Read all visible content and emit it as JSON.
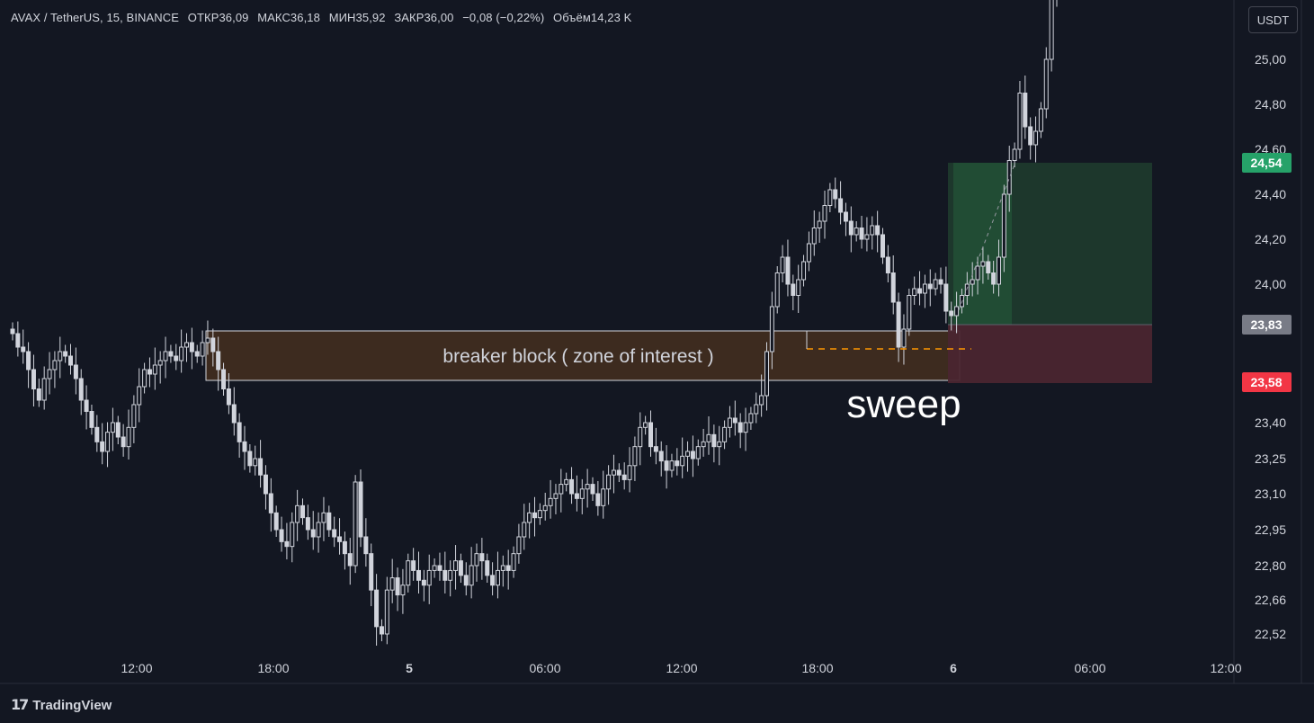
{
  "header": {
    "symbol": "AVAX / TetherUS, 15, BINANCE",
    "open": "ОТКР36,09",
    "high": "МАКС36,18",
    "low": "МИН35,92",
    "close": "ЗАКР36,00",
    "change": "−0,08 (−0,22%)",
    "volume": "Объём14,23 K"
  },
  "currency_button": "USDT",
  "brand": "TradingView",
  "colors": {
    "background": "#131722",
    "candle": "#d1d4dc",
    "target_zone": "#1f3b2e",
    "stop_zone": "#4a2530",
    "breaker_zone": "#3d2b1f",
    "target_badge": "#26a269",
    "stop_badge": "#f23645",
    "entry_badge": "#787b86",
    "dashed_line": "#ff9800"
  },
  "chart_data": {
    "type": "candlestick",
    "price_axis": {
      "ticks": [
        "25,00",
        "24,80",
        "24,60",
        "24,40",
        "24,20",
        "24,00",
        "23,40",
        "23,25",
        "23,10",
        "22,95",
        "22,80",
        "22,66",
        "22,52"
      ],
      "price_labels": {
        "target": "24,54",
        "entry": "23,83",
        "stop": "23,58"
      }
    },
    "time_axis": {
      "ticks": [
        "12:00",
        "18:00",
        "5",
        "06:00",
        "12:00",
        "18:00",
        "6",
        "06:00",
        "12:00"
      ],
      "bold": [
        false,
        false,
        true,
        false,
        false,
        false,
        true,
        false,
        false
      ]
    },
    "annotations": {
      "zone_label": "breaker block ( zone of interest )",
      "sweep_label": "sweep"
    },
    "candles_close": [
      23.78,
      23.72,
      23.7,
      23.62,
      23.55,
      23.5,
      23.58,
      23.62,
      23.66,
      23.7,
      23.68,
      23.64,
      23.58,
      23.5,
      23.45,
      23.38,
      23.32,
      23.28,
      23.36,
      23.4,
      23.34,
      23.3,
      23.38,
      23.48,
      23.56,
      23.62,
      23.6,
      23.64,
      23.66,
      23.7,
      23.68,
      23.66,
      23.72,
      23.74,
      23.7,
      23.68,
      23.74,
      23.76,
      23.7,
      23.62,
      23.55,
      23.48,
      23.4,
      23.32,
      23.28,
      23.22,
      23.25,
      23.18,
      23.1,
      23.02,
      22.95,
      22.9,
      22.88,
      22.98,
      23.05,
      23.0,
      22.95,
      22.92,
      22.98,
      23.02,
      22.95,
      22.92,
      22.9,
      22.85,
      22.8,
      23.15,
      22.92,
      22.85,
      22.7,
      22.55,
      22.52,
      22.7,
      22.75,
      22.68,
      22.72,
      22.82,
      22.78,
      22.74,
      22.72,
      22.78,
      22.8,
      22.78,
      22.74,
      22.78,
      22.82,
      22.76,
      22.72,
      22.8,
      22.85,
      22.82,
      22.76,
      22.72,
      22.78,
      22.8,
      22.78,
      22.85,
      22.92,
      22.98,
      23.02,
      23.0,
      23.03,
      23.05,
      23.08,
      23.1,
      23.14,
      23.16,
      23.1,
      23.08,
      23.12,
      23.14,
      23.1,
      23.05,
      23.12,
      23.18,
      23.2,
      23.18,
      23.16,
      23.22,
      23.3,
      23.38,
      23.4,
      23.3,
      23.28,
      23.24,
      23.2,
      23.24,
      23.22,
      23.26,
      23.28,
      23.25,
      23.3,
      23.32,
      23.35,
      23.3,
      23.32,
      23.38,
      23.42,
      23.4,
      23.36,
      23.4,
      23.44,
      23.48,
      23.52,
      23.7,
      23.9,
      24.05,
      24.12,
      24.0,
      23.95,
      24.02,
      24.1,
      24.18,
      24.25,
      24.28,
      24.35,
      24.42,
      24.38,
      24.32,
      24.28,
      24.22,
      24.25,
      24.2,
      24.22,
      24.26,
      24.22,
      24.12,
      24.05,
      23.92,
      23.72,
      23.8,
      23.95,
      23.98,
      23.96,
      24.0,
      23.98,
      24.02,
      24.0,
      23.88,
      23.86,
      23.9,
      23.95,
      24.0,
      24.02,
      24.08,
      24.1,
      24.05,
      24.0,
      24.12,
      24.4,
      24.55,
      24.6,
      24.85,
      24.7,
      24.62,
      24.68,
      24.78,
      25.0,
      25.3,
      25.6
    ]
  }
}
